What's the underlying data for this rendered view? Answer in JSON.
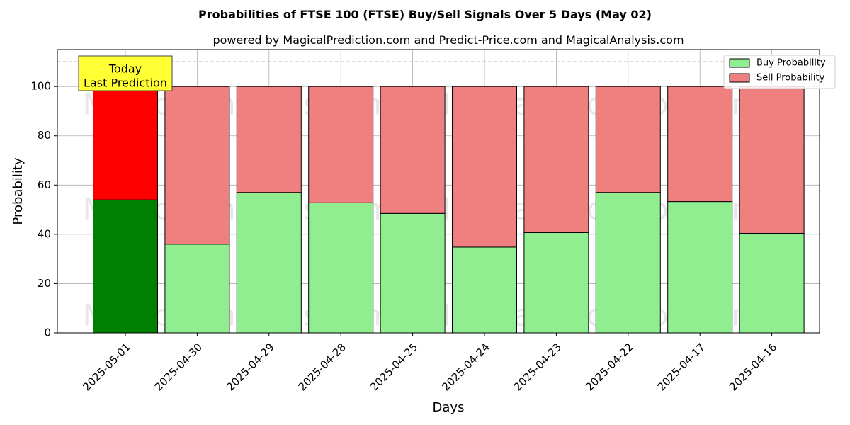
{
  "chart_data": {
    "type": "bar",
    "stacked": true,
    "title": "Probabilities of FTSE 100 (FTSE) Buy/Sell Signals Over 5 Days (May 02)",
    "subtitle": "powered by MagicalPrediction.com and Predict-Price.com and MagicalAnalysis.com",
    "xlabel": "Days",
    "ylabel": "Probability",
    "ylim": [
      0,
      115
    ],
    "yticks": [
      0,
      20,
      40,
      60,
      80,
      100
    ],
    "grid": true,
    "legend_position": "top-right",
    "reference_line": 110,
    "categories": [
      "2025-05-01",
      "2025-04-30",
      "2025-04-29",
      "2025-04-28",
      "2025-04-25",
      "2025-04-24",
      "2025-04-23",
      "2025-04-22",
      "2025-04-17",
      "2025-04-16"
    ],
    "series": [
      {
        "name": "Buy Probability",
        "values": [
          54,
          36,
          57,
          52.8,
          48.5,
          34.8,
          40.7,
          57,
          53.3,
          40.4
        ]
      },
      {
        "name": "Sell Probability",
        "values": [
          46,
          64,
          43,
          47.2,
          51.5,
          65.2,
          59.3,
          43,
          46.7,
          59.6
        ]
      }
    ],
    "annotation": {
      "lines": [
        "Today",
        "Last Prediction"
      ],
      "category_index": 0
    },
    "colors": {
      "buy": "#90ee90",
      "sell": "#f08080",
      "buy_today": "#008000",
      "sell_today": "#ff0000",
      "annotation_bg": "#ffff33"
    },
    "watermarks": [
      "MagicalAnalysis.com",
      "MagicalPrediction.com"
    ]
  }
}
